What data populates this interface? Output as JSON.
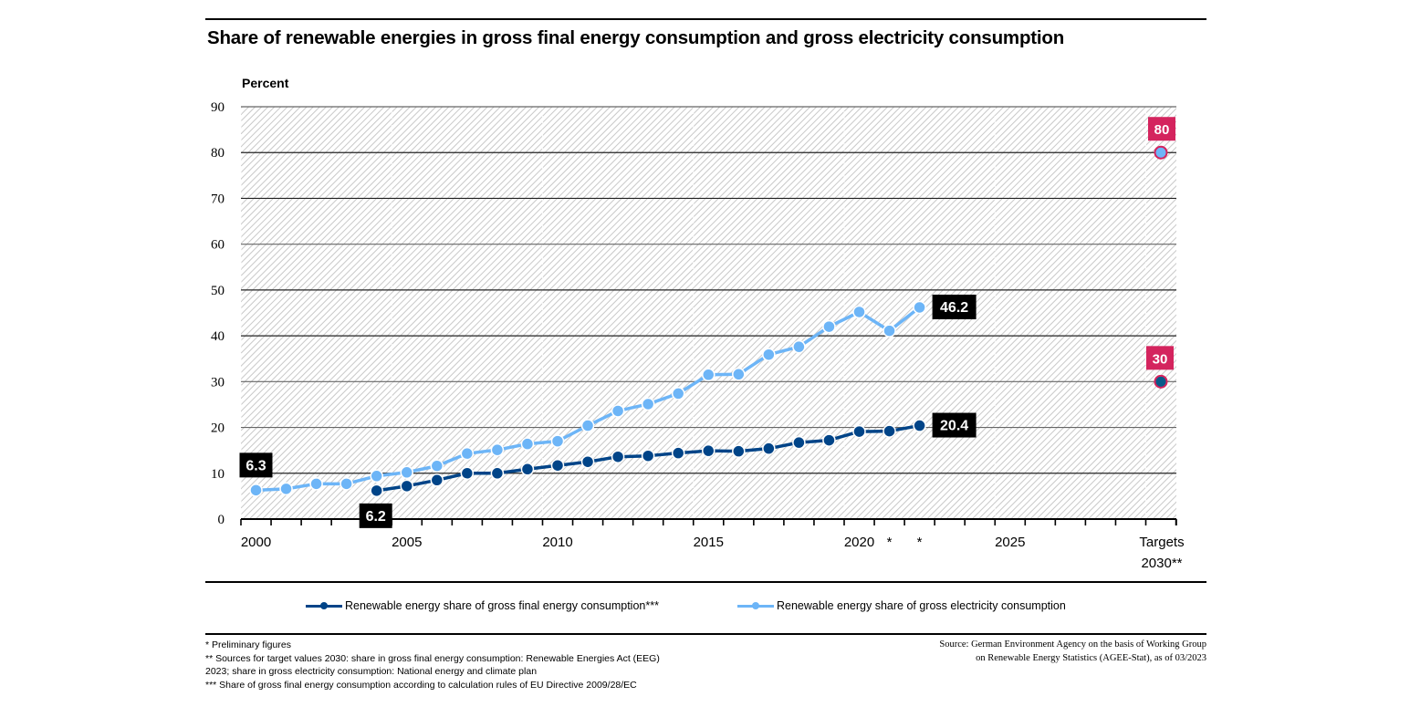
{
  "chart_data": {
    "type": "line",
    "title": "Share of renewable energies in gross final energy consumption and gross electricity consumption",
    "ylabel": "Percent",
    "xlabel": "",
    "ylim": [
      0,
      90
    ],
    "yticks": [
      0,
      10,
      20,
      30,
      40,
      50,
      60,
      70,
      80,
      90
    ],
    "xlim": [
      2000,
      2030
    ],
    "x_tick_labels": [
      {
        "x": 2000,
        "label": "2000"
      },
      {
        "x": 2005,
        "label": "2005"
      },
      {
        "x": 2010,
        "label": "2010"
      },
      {
        "x": 2015,
        "label": "2015"
      },
      {
        "x": 2020,
        "label": "2020"
      },
      {
        "x": 2021,
        "label": "*"
      },
      {
        "x": 2022,
        "label": "*"
      },
      {
        "x": 2025,
        "label": "2025"
      },
      {
        "x": 2030,
        "label": "Targets",
        "label2": "2030**"
      }
    ],
    "grid": true,
    "legend_position": "bottom",
    "series": [
      {
        "name": "Renewable energy share of gross final energy consumption***",
        "color": "#004488",
        "x": [
          2004,
          2005,
          2006,
          2007,
          2008,
          2009,
          2010,
          2011,
          2012,
          2013,
          2014,
          2015,
          2016,
          2017,
          2018,
          2019,
          2020,
          2021,
          2022
        ],
        "values": [
          6.2,
          7.2,
          8.5,
          10.0,
          10.0,
          10.9,
          11.7,
          12.5,
          13.6,
          13.8,
          14.4,
          14.9,
          14.8,
          15.4,
          16.7,
          17.2,
          19.1,
          19.2,
          20.4
        ],
        "labels": [
          {
            "x": 2004,
            "text": "6.2",
            "pos": "below"
          },
          {
            "x": 2022,
            "text": "20.4",
            "pos": "right"
          }
        ],
        "target": {
          "x": 2030,
          "value": 30,
          "label": "30"
        }
      },
      {
        "name": "Renewable energy share of gross electricity consumption",
        "color": "#6db5f7",
        "x": [
          2000,
          2001,
          2002,
          2003,
          2004,
          2005,
          2006,
          2007,
          2008,
          2009,
          2010,
          2011,
          2012,
          2013,
          2014,
          2015,
          2016,
          2017,
          2018,
          2019,
          2020,
          2021,
          2022
        ],
        "values": [
          6.3,
          6.6,
          7.7,
          7.7,
          9.4,
          10.2,
          11.6,
          14.3,
          15.1,
          16.4,
          17.0,
          20.4,
          23.6,
          25.1,
          27.4,
          31.5,
          31.6,
          35.9,
          37.6,
          42.0,
          45.2,
          41.1,
          46.2
        ],
        "labels": [
          {
            "x": 2000,
            "text": "6.3",
            "pos": "above"
          },
          {
            "x": 2022,
            "text": "46.2",
            "pos": "right"
          }
        ],
        "target": {
          "x": 2030,
          "value": 80,
          "label": "80"
        }
      }
    ],
    "target_color": "#d4245e",
    "label_box_color": "#000000"
  },
  "legend": [
    {
      "label": "Renewable energy share of gross final energy consumption***",
      "color": "#004488"
    },
    {
      "label": "Renewable energy share of gross electricity consumption",
      "color": "#6db5f7"
    }
  ],
  "notes": [
    "* Preliminary figures",
    "** Sources for target values 2030: share in gross final energy consumption: Renewable Energies Act (EEG)",
    "2023; share in gross electricity consumption: National energy and climate plan",
    "*** Share of gross final energy consumption according to calculation rules of EU Directive 2009/28/EC"
  ],
  "source": [
    "Source: German Environment Agency on the basis of Working Group",
    "on Renewable Energy Statistics (AGEE-Stat), as of 03/2023"
  ]
}
